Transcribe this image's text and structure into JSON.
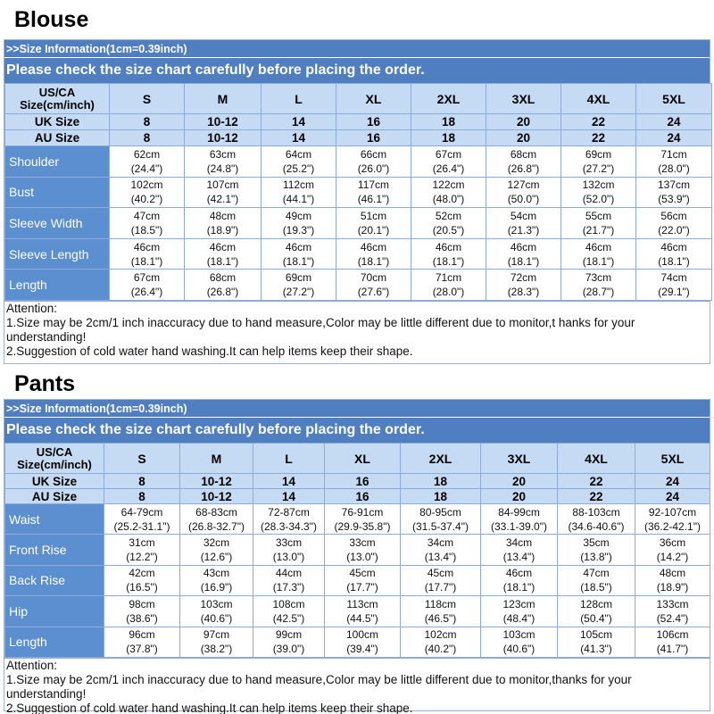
{
  "blouse": {
    "title": "Blouse",
    "info": ">>Size Information(1cm=0.39inch)",
    "check": "Please check the size chart carefully before placing the order.",
    "header_label": "US/CA Size(cm/inch)",
    "sizes": [
      "S",
      "M",
      "L",
      "XL",
      "2XL",
      "3XL",
      "4XL",
      "5XL"
    ],
    "uk_label": "UK Size",
    "uk": [
      "8",
      "10-12",
      "14",
      "16",
      "18",
      "20",
      "22",
      "24"
    ],
    "au_label": "AU Size",
    "au": [
      "8",
      "10-12",
      "14",
      "16",
      "18",
      "20",
      "22",
      "24"
    ],
    "rows": [
      {
        "label": "Shoulder",
        "cm": [
          "62cm",
          "63cm",
          "64cm",
          "66cm",
          "67cm",
          "68cm",
          "69cm",
          "71cm"
        ],
        "inch": [
          "(24.4\")",
          "(24.8\")",
          "(25.2\")",
          "(26.0\")",
          "(26.4\")",
          "(26.8\")",
          "(27.2\")",
          "(28.0\")"
        ]
      },
      {
        "label": "Bust",
        "cm": [
          "102cm",
          "107cm",
          "112cm",
          "117cm",
          "122cm",
          "127cm",
          "132cm",
          "137cm"
        ],
        "inch": [
          "(40.2\")",
          "(42.1\")",
          "(44.1\")",
          "(46.1\")",
          "(48.0\")",
          "(50.0\")",
          "(52.0\")",
          "(53.9\")"
        ]
      },
      {
        "label": "Sleeve Width",
        "cm": [
          "47cm",
          "48cm",
          "49cm",
          "51cm",
          "52cm",
          "54cm",
          "55cm",
          "56cm"
        ],
        "inch": [
          "(18.5\")",
          "(18.9\")",
          "(19.3\")",
          "(20.1\")",
          "(20.5\")",
          "(21.3\")",
          "(21.7\")",
          "(22.0\")"
        ]
      },
      {
        "label": "Sleeve Length",
        "cm": [
          "46cm",
          "46cm",
          "46cm",
          "46cm",
          "46cm",
          "46cm",
          "46cm",
          "46cm"
        ],
        "inch": [
          "(18.1\")",
          "(18.1\")",
          "(18.1\")",
          "(18.1\")",
          "(18.1\")",
          "(18.1\")",
          "(18.1\")",
          "(18.1\")"
        ]
      },
      {
        "label": "Length",
        "cm": [
          "67cm",
          "68cm",
          "69cm",
          "70cm",
          "71cm",
          "72cm",
          "73cm",
          "74cm"
        ],
        "inch": [
          "(26.4\")",
          "(26.8\")",
          "(27.2\")",
          "(27.6\")",
          "(28.0\")",
          "(28.3\")",
          "(28.7\")",
          "(29.1\")"
        ]
      }
    ],
    "attention": "Attention:",
    "note1": "1.Size may be 2cm/1 inch inaccuracy due to hand measure,Color may be little different due to monitor,t hanks for your understanding!",
    "note2": "2.Suggestion of cold water hand washing.It can help items keep their shape."
  },
  "pants": {
    "title": "Pants",
    "info": ">>Size Information(1cm=0.39inch)",
    "check": "Please check the size chart carefully before placing the order.",
    "header_label": "US/CA Size(cm/inch)",
    "sizes": [
      "S",
      "M",
      "L",
      "XL",
      "2XL",
      "3XL",
      "4XL",
      "5XL"
    ],
    "uk_label": "UK Size",
    "uk": [
      "8",
      "10-12",
      "14",
      "16",
      "18",
      "20",
      "22",
      "24"
    ],
    "au_label": "AU Size",
    "au": [
      "8",
      "10-12",
      "14",
      "16",
      "18",
      "20",
      "22",
      "24"
    ],
    "rows": [
      {
        "label": "Waist",
        "cm": [
          "64-79cm",
          "68-83cm",
          "72-87cm",
          "76-91cm",
          "80-95cm",
          "84-99cm",
          "88-103cm",
          "92-107cm"
        ],
        "inch": [
          "(25.2-31.1\")",
          "(26.8-32.7\")",
          "(28.3-34.3\")",
          "(29.9-35.8\")",
          "(31.5-37.4\")",
          "(33.1-39.0\")",
          "(34.6-40.6\")",
          "(36.2-42.1\")"
        ]
      },
      {
        "label": "Front Rise",
        "cm": [
          "31cm",
          "32cm",
          "33cm",
          "33cm",
          "34cm",
          "34cm",
          "35cm",
          "36cm"
        ],
        "inch": [
          "(12.2\")",
          "(12.6\")",
          "(13.0\")",
          "(13.0\")",
          "(13.4\")",
          "(13.4\")",
          "(13.8\")",
          "(14.2\")"
        ]
      },
      {
        "label": "Back Rise",
        "cm": [
          "42cm",
          "43cm",
          "44cm",
          "45cm",
          "45cm",
          "46cm",
          "47cm",
          "48cm"
        ],
        "inch": [
          "(16.5\")",
          "(16.9\")",
          "(17.3\")",
          "(17.7\")",
          "(17.7\")",
          "(18.1\")",
          "(18.5\")",
          "(18.9\")"
        ]
      },
      {
        "label": "Hip",
        "cm": [
          "98cm",
          "103cm",
          "108cm",
          "113cm",
          "118cm",
          "123cm",
          "128cm",
          "133cm"
        ],
        "inch": [
          "(38.6\")",
          "(40.6\")",
          "(42.5\")",
          "(44.5\")",
          "(46.5\")",
          "(48.4\")",
          "(50.4\")",
          "(52.4\")"
        ]
      },
      {
        "label": "Length",
        "cm": [
          "96cm",
          "97cm",
          "99cm",
          "100cm",
          "102cm",
          "103cm",
          "105cm",
          "106cm"
        ],
        "inch": [
          "(37.8\")",
          "(38.2\")",
          "(39.0\")",
          "(39.4\")",
          "(40.2\")",
          "(40.6\")",
          "(41.3\")",
          "(41.7\")"
        ]
      }
    ],
    "attention": "Attention:",
    "note1": "1.Size may be 2cm/1 inch inaccuracy due to hand measure,Color may be little different due to monitor,thanks for your understanding!",
    "note2": "2.Suggestion of cold water hand washing.It can help items keep their shape."
  }
}
